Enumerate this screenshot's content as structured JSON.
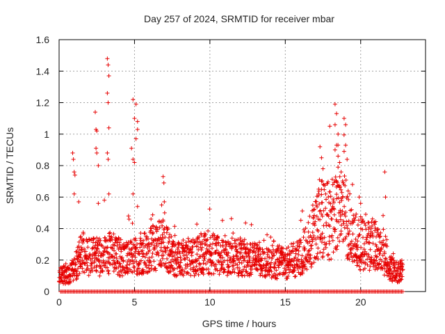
{
  "chart_data": {
    "type": "scatter",
    "title": "Day 257 of 2024, SRMTID for receiver mbar",
    "xlabel": "GPS time / hours",
    "ylabel": "SRMTID / TECUs",
    "xlim": [
      0,
      24.3
    ],
    "ylim": [
      0,
      1.6
    ],
    "xticks": [
      0,
      5,
      10,
      15,
      20
    ],
    "xtick_labels": [
      "0",
      "5",
      "10",
      "15",
      "20"
    ],
    "yticks": [
      0,
      0.2,
      0.4,
      0.6,
      0.8,
      1,
      1.2,
      1.4,
      1.6
    ],
    "ytick_labels": [
      "0",
      "0.2",
      "0.4",
      "0.6",
      "0.8",
      "1",
      "1.2",
      "1.4",
      "1.6"
    ],
    "grid": true,
    "marker": "+",
    "series_color": "#e60000",
    "baseline_zero_points": true,
    "profile": [
      [
        0.0,
        0.12
      ],
      [
        0.5,
        0.1
      ],
      [
        1.0,
        0.14
      ],
      [
        1.5,
        0.25
      ],
      [
        2.0,
        0.22
      ],
      [
        2.5,
        0.22
      ],
      [
        3.0,
        0.22
      ],
      [
        3.5,
        0.25
      ],
      [
        4.0,
        0.22
      ],
      [
        4.5,
        0.2
      ],
      [
        5.0,
        0.22
      ],
      [
        5.5,
        0.24
      ],
      [
        6.0,
        0.26
      ],
      [
        6.5,
        0.3
      ],
      [
        7.0,
        0.3
      ],
      [
        7.5,
        0.22
      ],
      [
        8.0,
        0.2
      ],
      [
        8.5,
        0.22
      ],
      [
        9.0,
        0.22
      ],
      [
        9.5,
        0.24
      ],
      [
        10.0,
        0.24
      ],
      [
        10.5,
        0.24
      ],
      [
        11.0,
        0.22
      ],
      [
        11.5,
        0.22
      ],
      [
        12.0,
        0.22
      ],
      [
        12.5,
        0.2
      ],
      [
        13.0,
        0.2
      ],
      [
        13.5,
        0.18
      ],
      [
        14.0,
        0.18
      ],
      [
        14.5,
        0.18
      ],
      [
        15.0,
        0.18
      ],
      [
        15.5,
        0.2
      ],
      [
        16.0,
        0.22
      ],
      [
        16.5,
        0.3
      ],
      [
        17.0,
        0.4
      ],
      [
        17.5,
        0.45
      ],
      [
        18.0,
        0.45
      ],
      [
        18.5,
        0.5
      ],
      [
        19.0,
        0.48
      ],
      [
        19.5,
        0.35
      ],
      [
        20.0,
        0.3
      ],
      [
        20.5,
        0.3
      ],
      [
        21.0,
        0.28
      ],
      [
        21.5,
        0.22
      ],
      [
        22.0,
        0.15
      ],
      [
        22.5,
        0.12
      ],
      [
        22.8,
        0.15
      ]
    ],
    "highlights": [
      [
        0.9,
        0.88
      ],
      [
        0.95,
        0.84
      ],
      [
        1.0,
        0.76
      ],
      [
        1.05,
        0.74
      ],
      [
        1.0,
        0.62
      ],
      [
        1.3,
        0.57
      ],
      [
        2.4,
        1.14
      ],
      [
        2.45,
        1.03
      ],
      [
        2.5,
        1.02
      ],
      [
        2.45,
        0.91
      ],
      [
        2.5,
        0.88
      ],
      [
        2.6,
        0.8
      ],
      [
        2.6,
        0.56
      ],
      [
        3.2,
        1.48
      ],
      [
        3.25,
        1.44
      ],
      [
        3.3,
        1.37
      ],
      [
        3.2,
        1.26
      ],
      [
        3.25,
        1.2
      ],
      [
        3.3,
        1.04
      ],
      [
        3.2,
        0.88
      ],
      [
        3.25,
        0.84
      ],
      [
        3.3,
        0.62
      ],
      [
        3.0,
        0.58
      ],
      [
        4.9,
        1.22
      ],
      [
        5.0,
        1.1
      ],
      [
        5.1,
        1.19
      ],
      [
        5.2,
        1.08
      ],
      [
        5.2,
        1.03
      ],
      [
        5.1,
        0.97
      ],
      [
        4.8,
        0.91
      ],
      [
        4.9,
        0.84
      ],
      [
        5.0,
        0.82
      ],
      [
        4.9,
        0.62
      ],
      [
        5.2,
        0.54
      ],
      [
        4.6,
        0.48
      ],
      [
        6.9,
        0.73
      ],
      [
        6.95,
        0.69
      ],
      [
        6.8,
        0.55
      ],
      [
        7.0,
        0.5
      ],
      [
        17.3,
        0.92
      ],
      [
        17.4,
        0.85
      ],
      [
        17.5,
        0.78
      ],
      [
        17.4,
        0.7
      ],
      [
        17.2,
        0.62
      ],
      [
        18.3,
        1.19
      ],
      [
        18.4,
        1.13
      ],
      [
        18.3,
        1.06
      ],
      [
        18.5,
        1.0
      ],
      [
        18.4,
        0.93
      ],
      [
        18.3,
        0.9
      ],
      [
        18.5,
        0.86
      ],
      [
        18.6,
        0.82
      ],
      [
        18.5,
        0.79
      ],
      [
        18.4,
        0.7
      ],
      [
        18.7,
        0.76
      ],
      [
        18.9,
        1.1
      ],
      [
        19.0,
        1.06
      ],
      [
        19.0,
        0.93
      ],
      [
        18.9,
        0.89
      ],
      [
        19.1,
        0.84
      ],
      [
        18.8,
        0.6
      ],
      [
        19.9,
        0.6
      ],
      [
        20.0,
        0.56
      ],
      [
        21.6,
        0.76
      ],
      [
        21.65,
        0.6
      ]
    ]
  }
}
